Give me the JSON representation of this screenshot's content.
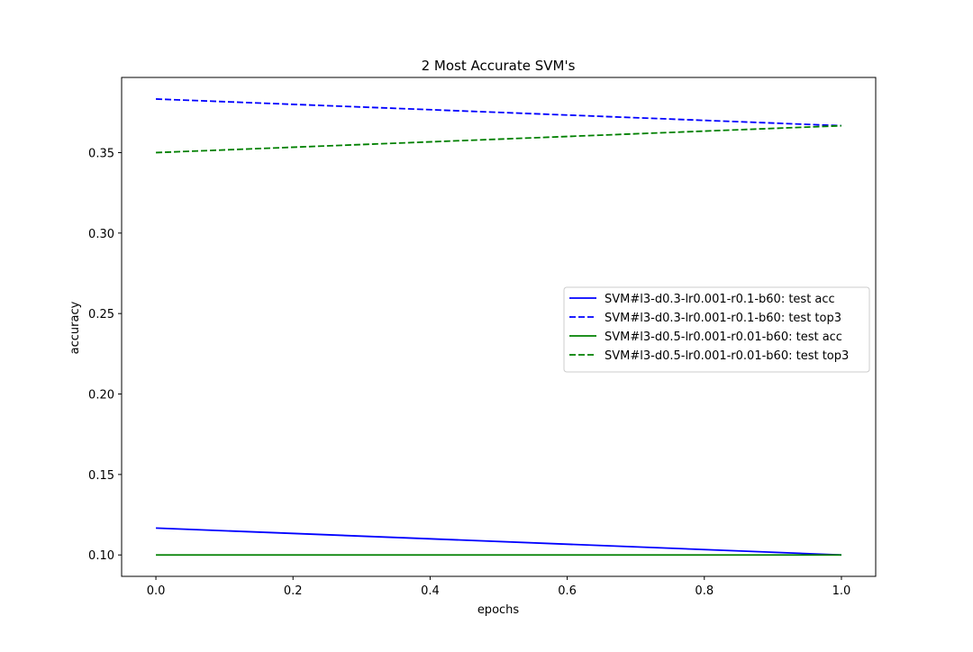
{
  "chart_data": {
    "type": "line",
    "title": "2 Most Accurate SVM's",
    "xlabel": "epochs",
    "ylabel": "accuracy",
    "xlim": [
      -0.05,
      1.05
    ],
    "ylim": [
      0.0867,
      0.3967
    ],
    "xticks": [
      0.0,
      0.2,
      0.4,
      0.6,
      0.8,
      1.0
    ],
    "xtick_labels": [
      "0.0",
      "0.2",
      "0.4",
      "0.6",
      "0.8",
      "1.0"
    ],
    "yticks": [
      0.1,
      0.15,
      0.2,
      0.25,
      0.3,
      0.35
    ],
    "ytick_labels": [
      "0.10",
      "0.15",
      "0.20",
      "0.25",
      "0.30",
      "0.35"
    ],
    "grid": false,
    "legend_position": "center-right",
    "x": [
      0,
      1
    ],
    "series": [
      {
        "name": "SVM#l3-d0.3-lr0.001-r0.1-b60: test acc",
        "values": [
          0.1167,
          0.1
        ],
        "color": "#0000ff",
        "dash": "solid"
      },
      {
        "name": "SVM#l3-d0.3-lr0.001-r0.1-b60: test top3",
        "values": [
          0.3833,
          0.3667
        ],
        "color": "#0000ff",
        "dash": "dashed"
      },
      {
        "name": "SVM#l3-d0.5-lr0.001-r0.01-b60: test acc",
        "values": [
          0.1,
          0.1
        ],
        "color": "#008000",
        "dash": "solid"
      },
      {
        "name": "SVM#l3-d0.5-lr0.001-r0.01-b60: test top3",
        "values": [
          0.35,
          0.3667
        ],
        "color": "#008000",
        "dash": "dashed"
      }
    ]
  }
}
